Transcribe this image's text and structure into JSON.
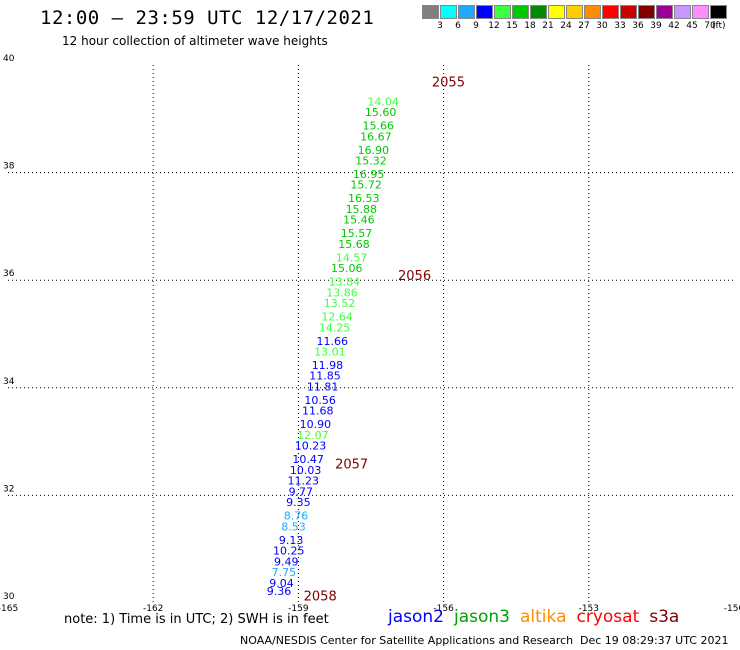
{
  "header": {
    "title": "12:00 – 23:59 UTC 12/17/2021",
    "subtitle": "12 hour collection of altimeter wave heights"
  },
  "legend": {
    "colors": [
      "#808080",
      "#00ffff",
      "#1ea8ff",
      "#0000ff",
      "#40ff40",
      "#00c800",
      "#008c00",
      "#ffff00",
      "#ffcc00",
      "#ff8c00",
      "#ff0000",
      "#c80000",
      "#820000",
      "#9b009b",
      "#c896ff",
      "#ff8cff",
      "#000000"
    ],
    "labels": [
      "3",
      "6",
      "9",
      "12",
      "15",
      "18",
      "21",
      "24",
      "27",
      "30",
      "33",
      "36",
      "39",
      "42",
      "45",
      "70"
    ],
    "unit": "(ft)"
  },
  "chart_data": {
    "type": "scatter",
    "xlim": [
      -165,
      -150
    ],
    "ylim": [
      30,
      40
    ],
    "x_ticks": [
      "-165",
      "-162",
      "-159",
      "-156",
      "-153",
      "-150"
    ],
    "y_ticks": [
      "30",
      "32",
      "34",
      "36",
      "38",
      "40"
    ],
    "grid": true,
    "points": [
      {
        "lon": -159.4,
        "lat": 30.15,
        "v": "9.36",
        "c": "#0000ff"
      },
      {
        "lon": -159.35,
        "lat": 30.3,
        "v": "9.04",
        "c": "#0000ff"
      },
      {
        "lon": -159.3,
        "lat": 30.5,
        "v": "7.75",
        "c": "#1ea8ff"
      },
      {
        "lon": -159.25,
        "lat": 30.7,
        "v": "9.49",
        "c": "#0000ff"
      },
      {
        "lon": -159.2,
        "lat": 30.9,
        "v": "10.25",
        "c": "#0000ff"
      },
      {
        "lon": -159.15,
        "lat": 31.1,
        "v": "9.13",
        "c": "#0000ff"
      },
      {
        "lon": -159.1,
        "lat": 31.35,
        "v": "8.53",
        "c": "#1ea8ff"
      },
      {
        "lon": -159.05,
        "lat": 31.55,
        "v": "8.76",
        "c": "#1ea8ff"
      },
      {
        "lon": -159.0,
        "lat": 31.8,
        "v": "9.35",
        "c": "#0000ff"
      },
      {
        "lon": -158.95,
        "lat": 32.0,
        "v": "9.77",
        "c": "#0000ff"
      },
      {
        "lon": -158.9,
        "lat": 32.2,
        "v": "11.23",
        "c": "#0000ff"
      },
      {
        "lon": -158.85,
        "lat": 32.4,
        "v": "10.03",
        "c": "#0000ff"
      },
      {
        "lon": -158.8,
        "lat": 32.6,
        "v": "10.47",
        "c": "#0000ff"
      },
      {
        "lon": -158.75,
        "lat": 32.85,
        "v": "10.23",
        "c": "#0000ff"
      },
      {
        "lon": -158.7,
        "lat": 33.05,
        "v": "12.07",
        "c": "#40ff40"
      },
      {
        "lon": -158.65,
        "lat": 33.25,
        "v": "10.90",
        "c": "#0000ff"
      },
      {
        "lon": -158.6,
        "lat": 33.5,
        "v": "11.68",
        "c": "#0000ff"
      },
      {
        "lon": -158.55,
        "lat": 33.7,
        "v": "10.56",
        "c": "#0000ff"
      },
      {
        "lon": -158.5,
        "lat": 33.95,
        "v": "11.81",
        "c": "#0000ff"
      },
      {
        "lon": -158.45,
        "lat": 34.15,
        "v": "11.85",
        "c": "#0000ff"
      },
      {
        "lon": -158.4,
        "lat": 34.35,
        "v": "11.98",
        "c": "#0000ff"
      },
      {
        "lon": -158.35,
        "lat": 34.6,
        "v": "13.01",
        "c": "#40ff40"
      },
      {
        "lon": -158.3,
        "lat": 34.8,
        "v": "11.66",
        "c": "#0000ff"
      },
      {
        "lon": -158.25,
        "lat": 35.05,
        "v": "14.25",
        "c": "#40ff40"
      },
      {
        "lon": -158.2,
        "lat": 35.25,
        "v": "12.64",
        "c": "#40ff40"
      },
      {
        "lon": -158.15,
        "lat": 35.5,
        "v": "13.52",
        "c": "#40ff40"
      },
      {
        "lon": -158.1,
        "lat": 35.7,
        "v": "13.86",
        "c": "#40ff40"
      },
      {
        "lon": -158.05,
        "lat": 35.9,
        "v": "13.84",
        "c": "#40ff40"
      },
      {
        "lon": -158.0,
        "lat": 36.15,
        "v": "15.06",
        "c": "#00c800"
      },
      {
        "lon": -157.9,
        "lat": 36.35,
        "v": "14.57",
        "c": "#40ff40"
      },
      {
        "lon": -157.85,
        "lat": 36.6,
        "v": "15.68",
        "c": "#00c800"
      },
      {
        "lon": -157.8,
        "lat": 36.8,
        "v": "15.57",
        "c": "#00c800"
      },
      {
        "lon": -157.75,
        "lat": 37.05,
        "v": "15.46",
        "c": "#00c800"
      },
      {
        "lon": -157.7,
        "lat": 37.25,
        "v": "15.88",
        "c": "#00c800"
      },
      {
        "lon": -157.65,
        "lat": 37.45,
        "v": "16.53",
        "c": "#00c800"
      },
      {
        "lon": -157.6,
        "lat": 37.7,
        "v": "15.72",
        "c": "#00c800"
      },
      {
        "lon": -157.55,
        "lat": 37.9,
        "v": "16.95",
        "c": "#00c800"
      },
      {
        "lon": -157.5,
        "lat": 38.15,
        "v": "15.32",
        "c": "#00c800"
      },
      {
        "lon": -157.45,
        "lat": 38.35,
        "v": "16.90",
        "c": "#00c800"
      },
      {
        "lon": -157.4,
        "lat": 38.6,
        "v": "16.67",
        "c": "#00c800"
      },
      {
        "lon": -157.35,
        "lat": 38.8,
        "v": "15.66",
        "c": "#00c800"
      },
      {
        "lon": -157.3,
        "lat": 39.05,
        "v": "15.60",
        "c": "#00c800"
      },
      {
        "lon": -157.25,
        "lat": 39.25,
        "v": "14.04",
        "c": "#40ff40"
      }
    ],
    "time_labels": [
      {
        "lon": -155.9,
        "lat": 39.6,
        "t": "2055"
      },
      {
        "lon": -156.6,
        "lat": 36.0,
        "t": "2056"
      },
      {
        "lon": -157.9,
        "lat": 32.5,
        "t": "2057"
      },
      {
        "lon": -158.55,
        "lat": 30.05,
        "t": "2058"
      }
    ]
  },
  "footer": {
    "note": "note:  1) Time is in UTC;  2) SWH is in feet",
    "satellites": [
      {
        "name": "jason2",
        "color": "#0000ff"
      },
      {
        "name": "jason3",
        "color": "#00a000"
      },
      {
        "name": "altika",
        "color": "#ff8c00"
      },
      {
        "name": "cryosat",
        "color": "#ff0000"
      },
      {
        "name": "s3a",
        "color": "#800000"
      }
    ],
    "credit": "NOAA/NESDIS Center for Satellite Applications and Research",
    "timestamp": "Dec 19 08:29:37 UTC 2021"
  }
}
